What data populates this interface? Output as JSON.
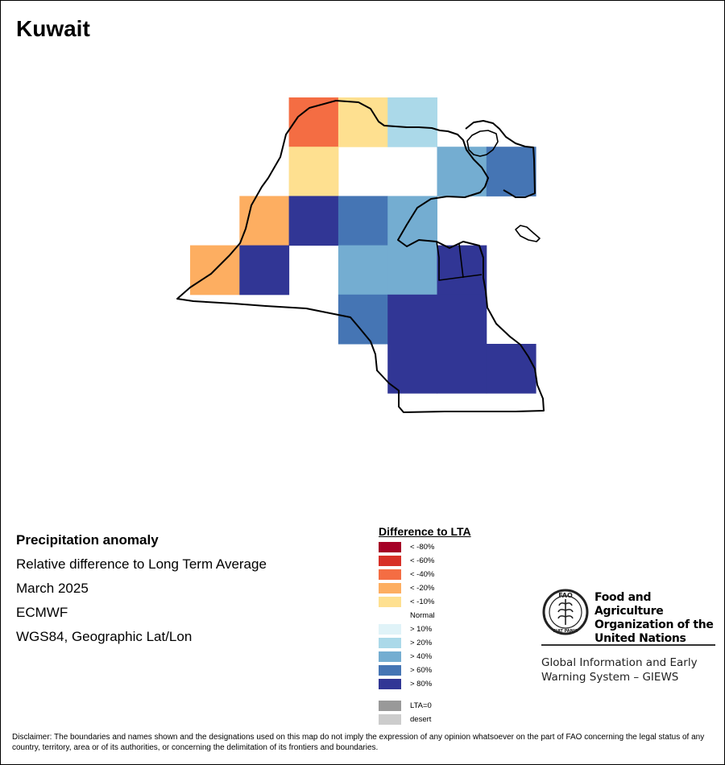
{
  "title": "Kuwait",
  "info": {
    "heading": "Precipitation anomaly",
    "line1": "Relative difference to Long Term Average",
    "line2": "March 2025",
    "line3": "ECMWF",
    "line4": "WGS84, Geographic Lat/Lon"
  },
  "legend": {
    "title": "Difference to LTA",
    "items": [
      {
        "label": "< -80%",
        "color": "#a50026"
      },
      {
        "label": "< -60%",
        "color": "#d73027"
      },
      {
        "label": "< -40%",
        "color": "#f46d43"
      },
      {
        "label": "< -20%",
        "color": "#fdae61"
      },
      {
        "label": "< -10%",
        "color": "#fee090"
      },
      {
        "label": "Normal",
        "color": "#ffffff"
      },
      {
        "label": "> 10%",
        "color": "#e0f3f8"
      },
      {
        "label": "> 20%",
        "color": "#abd9e9"
      },
      {
        "label": "> 40%",
        "color": "#74add1"
      },
      {
        "label": "> 60%",
        "color": "#4575b4"
      },
      {
        "label": "> 80%",
        "color": "#313695"
      }
    ],
    "extra": [
      {
        "label": "LTA=0",
        "color": "#999999"
      },
      {
        "label": "desert",
        "color": "#cccccc"
      }
    ]
  },
  "fao": {
    "name_line1": "Food and Agriculture",
    "name_line2": "Organization of the",
    "name_line3": "United Nations",
    "logo_text": "FAO",
    "motto": "FIAT PANIS",
    "giews_line1": "Global Information and Early",
    "giews_line2": "Warning System – GIEWS"
  },
  "disclaimer": "Disclaimer: The boundaries and names shown and the designations used on this map do not imply the expression of any opinion whatsoever on the part of FAO concerning the legal status of any country, territory, area or of its authorities, or concerning the delimitation of its frontiers and boundaries.",
  "grid": [
    {
      "col": 2,
      "row": 0,
      "cls": "< -40%"
    },
    {
      "col": 3,
      "row": 0,
      "cls": "< -10%"
    },
    {
      "col": 4,
      "row": 0,
      "cls": "> 20%"
    },
    {
      "col": 2,
      "row": 1,
      "cls": "< -10%"
    },
    {
      "col": 5,
      "row": 1,
      "cls": "> 40%"
    },
    {
      "col": 6,
      "row": 1,
      "cls": "> 60%"
    },
    {
      "col": 1,
      "row": 2,
      "cls": "< -20%"
    },
    {
      "col": 2,
      "row": 2,
      "cls": "> 80%"
    },
    {
      "col": 3,
      "row": 2,
      "cls": "> 60%"
    },
    {
      "col": 4,
      "row": 2,
      "cls": "> 40%"
    },
    {
      "col": 0,
      "row": 3,
      "cls": "< -20%"
    },
    {
      "col": 1,
      "row": 3,
      "cls": "> 80%"
    },
    {
      "col": 3,
      "row": 3,
      "cls": "> 40%"
    },
    {
      "col": 4,
      "row": 3,
      "cls": "> 40%"
    },
    {
      "col": 5,
      "row": 3,
      "cls": "> 80%"
    },
    {
      "col": 3,
      "row": 4,
      "cls": "> 60%"
    },
    {
      "col": 4,
      "row": 4,
      "cls": "> 80%"
    },
    {
      "col": 5,
      "row": 4,
      "cls": "> 80%"
    },
    {
      "col": 4,
      "row": 5,
      "cls": "> 80%"
    },
    {
      "col": 5,
      "row": 5,
      "cls": "> 80%"
    },
    {
      "col": 6,
      "row": 5,
      "cls": "> 80%"
    }
  ]
}
